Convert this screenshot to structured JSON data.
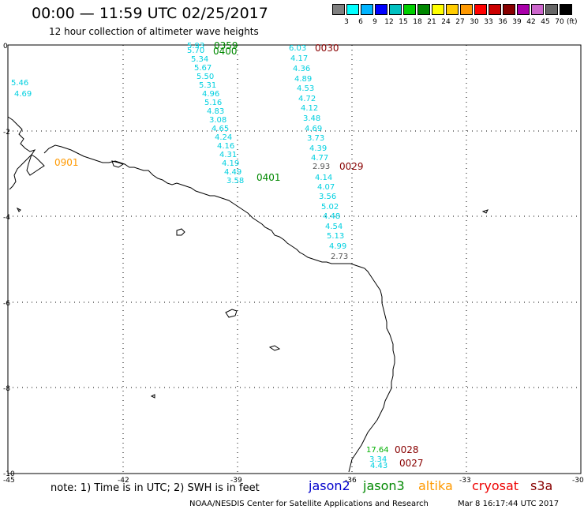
{
  "header": {
    "title": "00:00 — 11:59 UTC 02/25/2017",
    "subtitle": "12 hour collection of altimeter wave heights"
  },
  "scale": {
    "unit": "(ft)",
    "colors": [
      "#808080",
      "#00ffff",
      "#00b4ff",
      "#0000ff",
      "#00c0c0",
      "#00d000",
      "#008800",
      "#ffff00",
      "#ffcc00",
      "#ff9900",
      "#ff0000",
      "#cc0000",
      "#880000",
      "#aa00aa",
      "#cc66cc",
      "#666666",
      "#000000"
    ],
    "labels": [
      "3",
      "6",
      "9",
      "12",
      "15",
      "18",
      "21",
      "24",
      "27",
      "30",
      "33",
      "36",
      "39",
      "42",
      "45",
      "70"
    ]
  },
  "axes": {
    "x_ticks": [
      "-45",
      "-42",
      "-39",
      "-36",
      "-33",
      "-30"
    ],
    "y_ticks": [
      "0",
      "-2",
      "-4",
      "-6",
      "-8",
      "-10"
    ]
  },
  "pass_labels": [
    {
      "text": "0359",
      "color": "#008800"
    },
    {
      "text": "0400",
      "color": "#008800"
    },
    {
      "text": "0030",
      "color": "#880000"
    },
    {
      "text": "0901",
      "color": "#ff9900"
    },
    {
      "text": "0029",
      "color": "#880000"
    },
    {
      "text": "0401",
      "color": "#008800"
    },
    {
      "text": "0028",
      "color": "#880000"
    },
    {
      "text": "0027",
      "color": "#880000"
    }
  ],
  "track_left": [
    "5.93",
    "5.70",
    "5.34",
    "5.67",
    "5.50",
    "5.31",
    "4.96",
    "5.16",
    "4.83",
    "3.08",
    "4.65",
    "4.24",
    "4.16",
    "4.31",
    "4.19",
    "4.49",
    "3.58"
  ],
  "track_right": [
    "6.03",
    "4.17",
    "4.36",
    "4.89",
    "4.53",
    "4.72",
    "4.12",
    "3.48",
    "4.69",
    "3.73",
    "4.39",
    "4.77",
    "2.93",
    "4.14",
    "4.07",
    "3.56",
    "5.02",
    "4.48",
    "4.54",
    "5.13",
    "4.99",
    "2.73"
  ],
  "track_far_left": [
    "5.46",
    "4.69"
  ],
  "track_bottom": [
    "17.64",
    "3.34",
    "4.43"
  ],
  "note": "note: 1) Time is in UTC; 2) SWH is in feet",
  "legend": [
    {
      "text": "jason2",
      "color": "#0000cc"
    },
    {
      "text": "jason3",
      "color": "#008800"
    },
    {
      "text": "altika",
      "color": "#ff9900"
    },
    {
      "text": "cryosat",
      "color": "#ee0000"
    },
    {
      "text": "s3a",
      "color": "#880000"
    }
  ],
  "credit": "NOAA/NESDIS Center for Satellite Applications and Research",
  "timestamp": "Mar  8 16:17:44 UTC 2017"
}
